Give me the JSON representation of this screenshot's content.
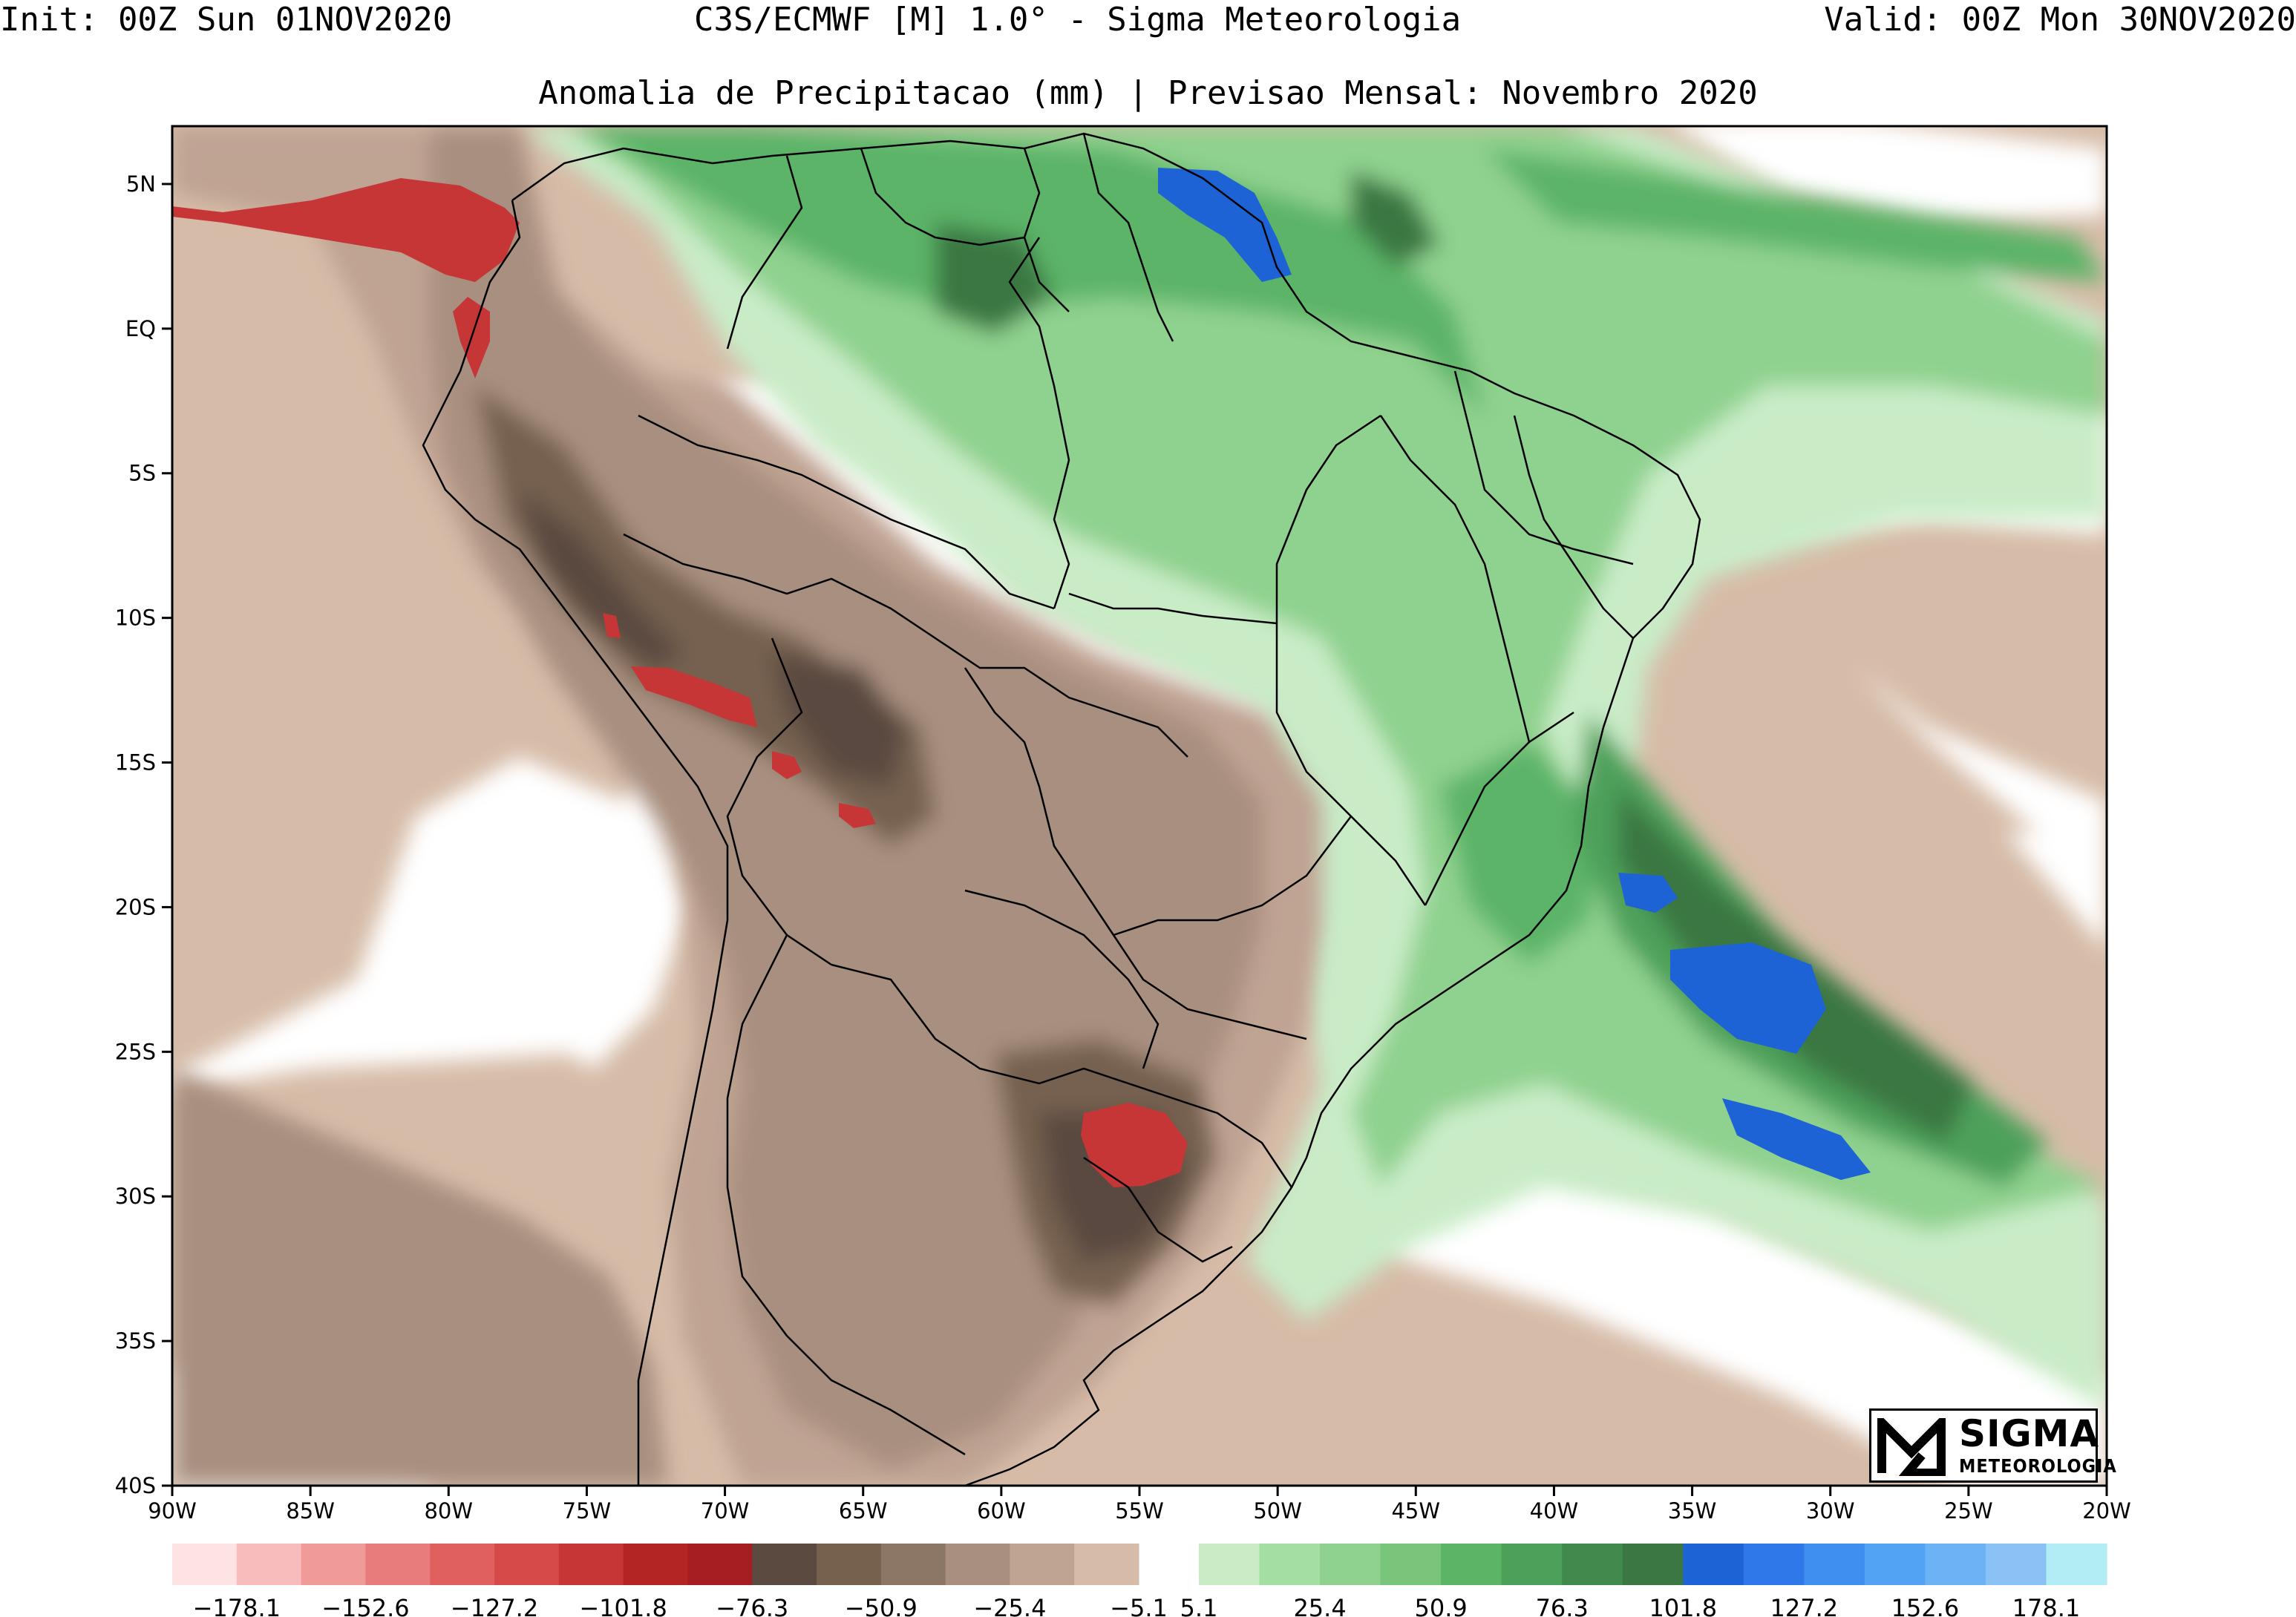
{
  "header": {
    "init": "Init: 00Z Sun 01NOV2020",
    "model": "C3S/ECMWF [M] 1.0° - Sigma Meteorologia",
    "valid": "Valid: 00Z Mon 30NOV2020",
    "title": "Anomalia de Precipitacao (mm) | Previsao Mensal: Novembro 2020"
  },
  "axes": {
    "lat_labels": [
      "5N",
      "EQ",
      "5S",
      "10S",
      "15S",
      "20S",
      "25S",
      "30S",
      "35S",
      "40S"
    ],
    "lon_labels": [
      "90W",
      "85W",
      "80W",
      "75W",
      "70W",
      "65W",
      "60W",
      "55W",
      "50W",
      "45W",
      "40W",
      "35W",
      "30W",
      "25W",
      "20W"
    ],
    "lon_range": [
      -90,
      -20
    ],
    "lat_range": [
      -40,
      7
    ]
  },
  "colorbar": {
    "negative": {
      "colors": [
        "#fde3e3",
        "#f9bcbc",
        "#f19a9a",
        "#e87b7b",
        "#e06060",
        "#d64a4a",
        "#c73636",
        "#b32525",
        "#a51e22",
        "#5a4a40",
        "#76614f",
        "#8c7766",
        "#a88f7f",
        "#bfa393",
        "#d6bca8"
      ],
      "labels": [
        "−178.1",
        "−152.6",
        "−127.2",
        "−101.8",
        "−76.3",
        "−50.9",
        "−25.4",
        "−5.1"
      ]
    },
    "positive": {
      "colors": [
        "#c9ecc7",
        "#a5dea3",
        "#8fd18e",
        "#78c57b",
        "#5cb467",
        "#4da05a",
        "#408a4d",
        "#3b7743",
        "#1e63d5",
        "#2f78ea",
        "#3e8ff0",
        "#52a3f3",
        "#6cb3f5",
        "#8ac2f6",
        "#b2ecf5"
      ],
      "labels": [
        "5.1",
        "25.4",
        "50.9",
        "76.3",
        "101.8",
        "127.2",
        "152.6",
        "178.1"
      ]
    }
  },
  "legend_colors": {
    "white": "#ffffff",
    "brown_light": "#d6bca8",
    "brown_mid": "#a88f7f",
    "brown_dark": "#5a4a40",
    "red": "#c73636",
    "green_light": "#c9ecc7",
    "green_mid": "#78c57b",
    "green_dark": "#3b7743",
    "blue": "#1e63d5"
  },
  "logo": {
    "line1": "SIGMA",
    "line2": "METEOROLOGIA"
  }
}
